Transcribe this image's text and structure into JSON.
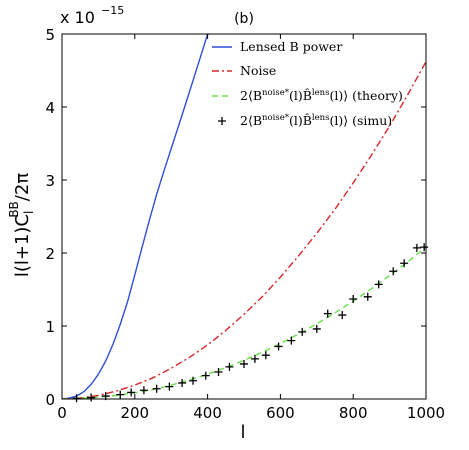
{
  "chart_data": {
    "type": "line",
    "panel_label": "(b)",
    "title": "",
    "xlabel": "l",
    "ylabel": "l(l+1)C_l^BB/2π",
    "ylabel_parts": {
      "main": "l(l+1)C",
      "sub": "l",
      "sup": "BB",
      "tail": "/2π"
    },
    "y_exponent_label": "x 10",
    "y_exponent_power": "−15",
    "xlim": [
      0,
      1000
    ],
    "ylim": [
      0,
      5
    ],
    "xticks": [
      0,
      200,
      400,
      600,
      800,
      1000
    ],
    "yticks": [
      0,
      1,
      2,
      3,
      4,
      5
    ],
    "grid": false,
    "legend_position": "top-right",
    "colors": {
      "lensed": "#2f4fd8",
      "noise": "#d9262b",
      "theory": "#66e04a",
      "simu": "#000000"
    },
    "legend": [
      {
        "key": "lensed",
        "text": "Lensed B power"
      },
      {
        "key": "noise",
        "text": "Noise"
      },
      {
        "key": "theory",
        "prefix": "2⟨B",
        "sup1": "noise*",
        "mid": "(l)B̂",
        "sup2": "lens",
        "suffix": "(l)⟩ (theory)"
      },
      {
        "key": "simu",
        "prefix": "2⟨B",
        "sup1": "noise*",
        "mid": "(l)B̂",
        "sup2": "lens",
        "suffix": "(l)⟩ (simu)"
      }
    ],
    "series": [
      {
        "key": "lensed",
        "style": "solid",
        "x": [
          0,
          20,
          40,
          60,
          80,
          100,
          120,
          140,
          160,
          180,
          200,
          220,
          240,
          260,
          280,
          300,
          320,
          340,
          360,
          380,
          400,
          405
        ],
        "y": [
          0,
          0.012,
          0.04,
          0.1,
          0.2,
          0.34,
          0.52,
          0.75,
          1.02,
          1.33,
          1.7,
          2.08,
          2.45,
          2.8,
          3.12,
          3.43,
          3.74,
          4.05,
          4.36,
          4.68,
          5.0,
          5.0
        ]
      },
      {
        "key": "noise",
        "style": "dashdot",
        "x": [
          0,
          50,
          100,
          150,
          200,
          250,
          300,
          350,
          400,
          450,
          500,
          550,
          600,
          650,
          700,
          750,
          800,
          850,
          900,
          950,
          1000
        ],
        "y": [
          0,
          0.012,
          0.05,
          0.11,
          0.19,
          0.29,
          0.42,
          0.57,
          0.74,
          0.94,
          1.16,
          1.4,
          1.67,
          1.96,
          2.27,
          2.6,
          2.96,
          3.34,
          3.74,
          4.17,
          4.62
        ]
      },
      {
        "key": "theory",
        "style": "dashed",
        "x": [
          0,
          50,
          100,
          150,
          200,
          250,
          300,
          350,
          400,
          450,
          500,
          550,
          600,
          650,
          700,
          750,
          800,
          850,
          900,
          950,
          1000
        ],
        "y": [
          0,
          0.01,
          0.025,
          0.05,
          0.085,
          0.13,
          0.19,
          0.26,
          0.34,
          0.43,
          0.53,
          0.64,
          0.76,
          0.89,
          1.03,
          1.18,
          1.34,
          1.51,
          1.69,
          1.88,
          2.08
        ]
      },
      {
        "key": "simu",
        "style": "markers",
        "x": [
          40,
          80,
          120,
          160,
          190,
          225,
          260,
          295,
          330,
          360,
          395,
          430,
          460,
          500,
          530,
          560,
          595,
          630,
          660,
          700,
          730,
          770,
          800,
          840,
          870,
          910,
          940,
          975,
          995
        ],
        "y": [
          0.01,
          0.02,
          0.04,
          0.06,
          0.09,
          0.12,
          0.14,
          0.17,
          0.22,
          0.25,
          0.32,
          0.37,
          0.44,
          0.48,
          0.55,
          0.6,
          0.72,
          0.8,
          0.92,
          0.96,
          1.17,
          1.15,
          1.37,
          1.4,
          1.57,
          1.75,
          1.86,
          2.07,
          2.08
        ]
      }
    ]
  }
}
